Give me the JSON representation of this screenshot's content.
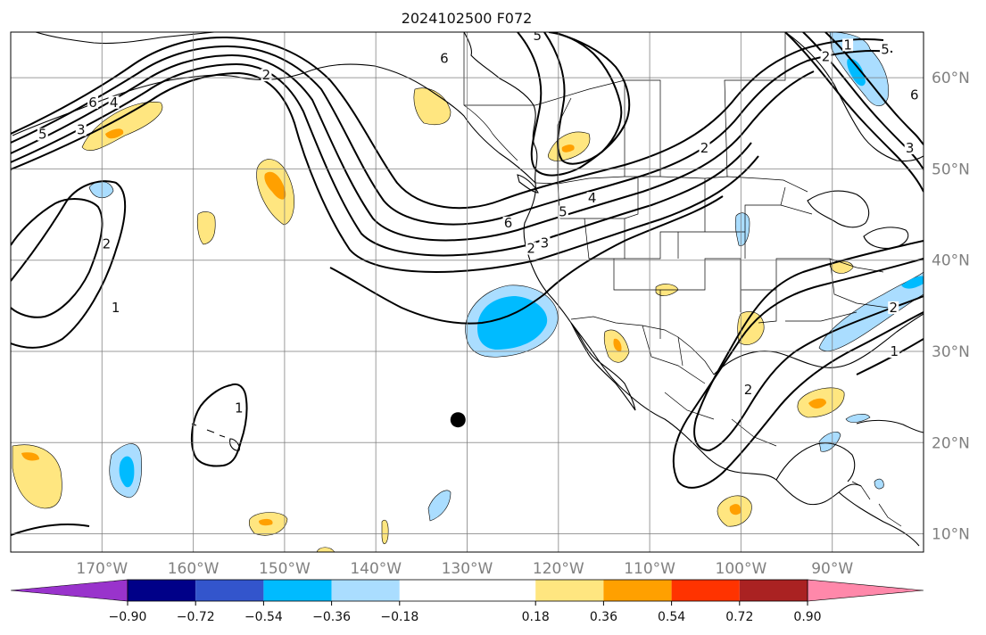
{
  "title": "2024102500 F072",
  "map": {
    "projection": "PlateCarree",
    "lon_range": [
      -180,
      -80
    ],
    "lat_range": [
      8,
      65
    ],
    "lat_ticks": [
      {
        "value": 10,
        "label": "10°N"
      },
      {
        "value": 20,
        "label": "20°N"
      },
      {
        "value": 30,
        "label": "30°N"
      },
      {
        "value": 40,
        "label": "40°N"
      },
      {
        "value": 50,
        "label": "50°N"
      },
      {
        "value": 60,
        "label": "60°N"
      }
    ],
    "lon_ticks": [
      {
        "value": -170,
        "label": "170°W"
      },
      {
        "value": -160,
        "label": "160°W"
      },
      {
        "value": -150,
        "label": "150°W"
      },
      {
        "value": -140,
        "label": "140°W"
      },
      {
        "value": -130,
        "label": "130°W"
      },
      {
        "value": -120,
        "label": "120°W"
      },
      {
        "value": -110,
        "label": "110°W"
      },
      {
        "value": -100,
        "label": "100°W"
      },
      {
        "value": -90,
        "label": "90°W"
      }
    ],
    "marker": {
      "lon": -131,
      "lat": 22.5,
      "color": "#000000"
    },
    "contour_labels": [
      {
        "text": "5",
        "lon": -176.5,
        "lat": 53.5
      },
      {
        "text": "3",
        "lon": -172.3,
        "lat": 54.0
      },
      {
        "text": "6",
        "lon": -171.0,
        "lat": 57.0
      },
      {
        "text": "4",
        "lon": -168.7,
        "lat": 57.0
      },
      {
        "text": "2",
        "lon": -169.5,
        "lat": 41.5
      },
      {
        "text": "1",
        "lon": -168.5,
        "lat": 34.5
      },
      {
        "text": "1",
        "lon": -155.0,
        "lat": 23.5
      },
      {
        "text": "6",
        "lon": -132.5,
        "lat": 61.8
      },
      {
        "text": "5",
        "lon": -122.3,
        "lat": 64.3
      },
      {
        "text": "2",
        "lon": -152.0,
        "lat": 60.0
      },
      {
        "text": "2",
        "lon": -104.0,
        "lat": 52.0
      },
      {
        "text": "6",
        "lon": -125.5,
        "lat": 43.8
      },
      {
        "text": "5",
        "lon": -119.5,
        "lat": 45.0
      },
      {
        "text": "4",
        "lon": -116.3,
        "lat": 46.5
      },
      {
        "text": "2",
        "lon": -123.0,
        "lat": 41.0
      },
      {
        "text": "3",
        "lon": -121.5,
        "lat": 41.6
      },
      {
        "text": "2",
        "lon": -90.7,
        "lat": 62.0
      },
      {
        "text": "1",
        "lon": -88.3,
        "lat": 63.3
      },
      {
        "text": "5",
        "lon": -84.2,
        "lat": 62.8
      },
      {
        "text": "6",
        "lon": -81.0,
        "lat": 57.8
      },
      {
        "text": "3",
        "lon": -81.5,
        "lat": 52.0
      },
      {
        "text": "2",
        "lon": -83.3,
        "lat": 34.5
      },
      {
        "text": "1",
        "lon": -83.2,
        "lat": 29.7
      },
      {
        "text": "2",
        "lon": -99.2,
        "lat": 25.5
      }
    ]
  },
  "colorbar": {
    "ticks": [
      "−0.90",
      "−0.72",
      "−0.54",
      "−0.36",
      "−0.18",
      "0.18",
      "0.36",
      "0.54",
      "0.72",
      "0.90"
    ],
    "tick_values": [
      -0.9,
      -0.72,
      -0.54,
      -0.36,
      -0.18,
      0.18,
      0.36,
      0.54,
      0.72,
      0.9
    ],
    "under_color": "#9933cc",
    "over_color": "#ff88aa",
    "colors": [
      "#000088",
      "#3355cc",
      "#00bbff",
      "#aaddff",
      "#ffffff",
      "#ffe680",
      "#ffa000",
      "#ff3300",
      "#aa2222"
    ]
  },
  "colors": {
    "contour": "#000000",
    "coast": "#000000",
    "grid": "#7a7a7a",
    "tick_text": "#808080"
  }
}
